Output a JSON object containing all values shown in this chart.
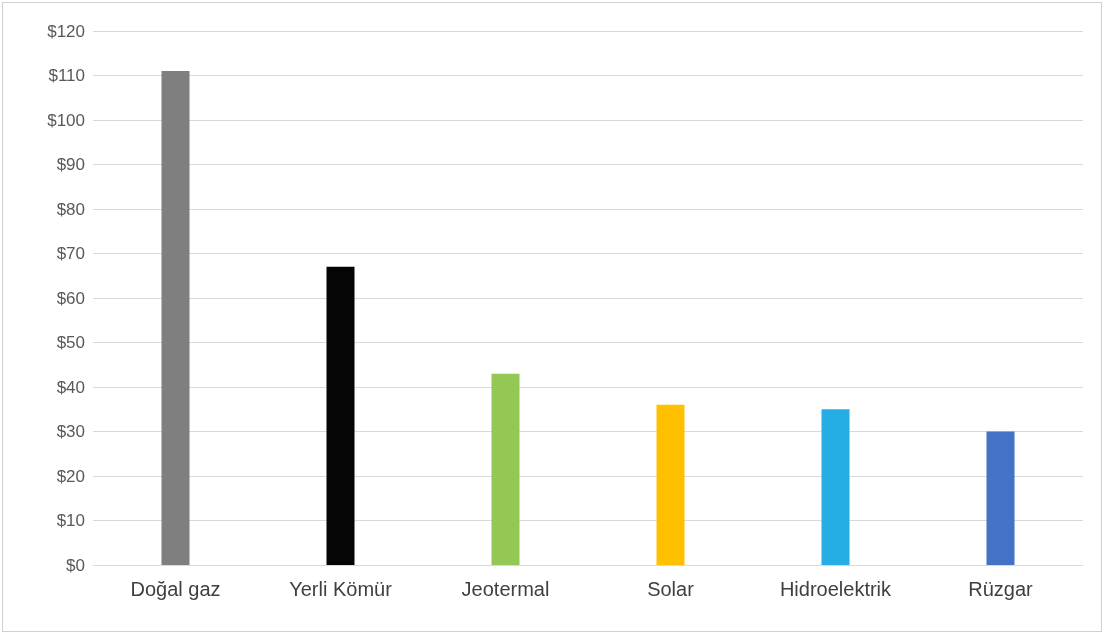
{
  "chart_data": {
    "type": "bar",
    "categories": [
      "Doğal gaz",
      "Yerli Kömür",
      "Jeotermal",
      "Solar",
      "Hidroelektrik",
      "Rüzgar"
    ],
    "values": [
      111,
      67,
      43,
      36,
      35,
      30
    ],
    "colors": [
      "#7f7f7f",
      "#050505",
      "#92c853",
      "#ffc000",
      "#25aee4",
      "#4472c4"
    ],
    "ylim": [
      0,
      120
    ],
    "yticks": [
      {
        "value": 0,
        "label": "$0"
      },
      {
        "value": 10,
        "label": "$10"
      },
      {
        "value": 20,
        "label": "$20"
      },
      {
        "value": 30,
        "label": "$30"
      },
      {
        "value": 40,
        "label": "$40"
      },
      {
        "value": 50,
        "label": "$50"
      },
      {
        "value": 60,
        "label": "$60"
      },
      {
        "value": 70,
        "label": "$70"
      },
      {
        "value": 80,
        "label": "$80"
      },
      {
        "value": 90,
        "label": "$90"
      },
      {
        "value": 100,
        "label": "$100"
      },
      {
        "value": 110,
        "label": "$110"
      },
      {
        "value": 120,
        "label": "$120"
      }
    ],
    "grid": true
  }
}
